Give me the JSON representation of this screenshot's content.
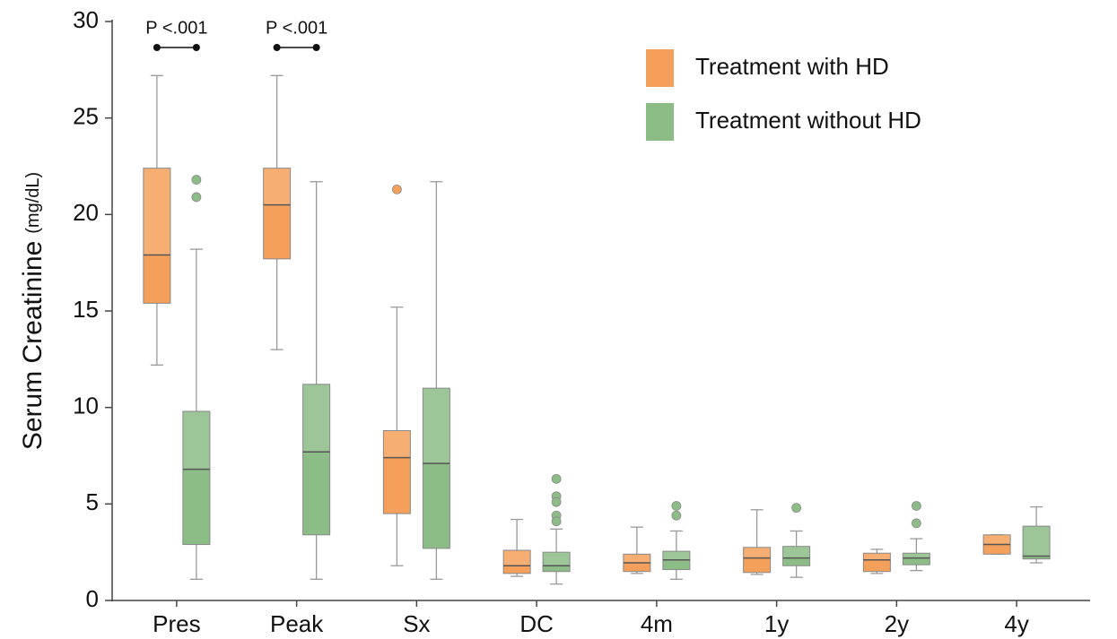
{
  "chart_data": {
    "type": "box",
    "y_label": "Serum Creatinine",
    "y_unit": "(mg/dL)",
    "categories": [
      "Pres",
      "Peak",
      "Sx",
      "DC",
      "4m",
      "1y",
      "2y",
      "4y"
    ],
    "ylim": [
      0,
      30
    ],
    "yticks": [
      0,
      5,
      10,
      15,
      20,
      25,
      30
    ],
    "legend_position": "upper right",
    "annotations": [
      {
        "text": "P <.001",
        "category": "Pres"
      },
      {
        "text": "P <.001",
        "category": "Peak"
      }
    ],
    "series": [
      {
        "name": "Treatment with HD",
        "color": "#f5a05a",
        "boxes": [
          {
            "min": 12.2,
            "q1": 15.4,
            "median": 17.9,
            "q3": 22.4,
            "max": 27.2,
            "outliers": []
          },
          {
            "min": 13.0,
            "q1": 17.7,
            "median": 20.5,
            "q3": 22.4,
            "max": 27.2,
            "outliers": []
          },
          {
            "min": 1.8,
            "q1": 4.5,
            "median": 7.4,
            "q3": 8.8,
            "max": 15.2,
            "outliers": [
              21.3
            ]
          },
          {
            "min": 1.25,
            "q1": 1.4,
            "median": 1.8,
            "q3": 2.6,
            "max": 4.2,
            "outliers": []
          },
          {
            "min": 1.4,
            "q1": 1.5,
            "median": 1.95,
            "q3": 2.4,
            "max": 3.8,
            "outliers": []
          },
          {
            "min": 1.35,
            "q1": 1.45,
            "median": 2.2,
            "q3": 2.75,
            "max": 4.7,
            "outliers": []
          },
          {
            "min": 1.4,
            "q1": 1.5,
            "median": 2.1,
            "q3": 2.45,
            "max": 2.65,
            "outliers": []
          },
          {
            "min": 2.4,
            "q1": 2.4,
            "median": 2.9,
            "q3": 3.4,
            "max": 3.4,
            "outliers": []
          }
        ]
      },
      {
        "name": "Treatment without HD",
        "color": "#8cbd86",
        "boxes": [
          {
            "min": 1.1,
            "q1": 2.9,
            "median": 6.8,
            "q3": 9.8,
            "max": 18.2,
            "outliers": [
              21.8,
              20.9
            ]
          },
          {
            "min": 1.1,
            "q1": 3.4,
            "median": 7.7,
            "q3": 11.2,
            "max": 21.7,
            "outliers": []
          },
          {
            "min": 1.1,
            "q1": 2.7,
            "median": 7.1,
            "q3": 11.0,
            "max": 21.7,
            "outliers": []
          },
          {
            "min": 0.85,
            "q1": 1.5,
            "median": 1.8,
            "q3": 2.5,
            "max": 3.7,
            "outliers": [
              6.3,
              5.4,
              5.1,
              4.4,
              4.1
            ]
          },
          {
            "min": 1.1,
            "q1": 1.6,
            "median": 2.1,
            "q3": 2.55,
            "max": 3.6,
            "outliers": [
              4.9,
              4.4
            ]
          },
          {
            "min": 1.2,
            "q1": 1.8,
            "median": 2.2,
            "q3": 2.8,
            "max": 3.6,
            "outliers": [
              4.8
            ]
          },
          {
            "min": 1.55,
            "q1": 1.85,
            "median": 2.2,
            "q3": 2.45,
            "max": 3.2,
            "outliers": [
              4.9,
              4.0
            ]
          },
          {
            "min": 1.95,
            "q1": 2.15,
            "median": 2.3,
            "q3": 3.85,
            "max": 4.85,
            "outliers": []
          }
        ]
      }
    ]
  }
}
